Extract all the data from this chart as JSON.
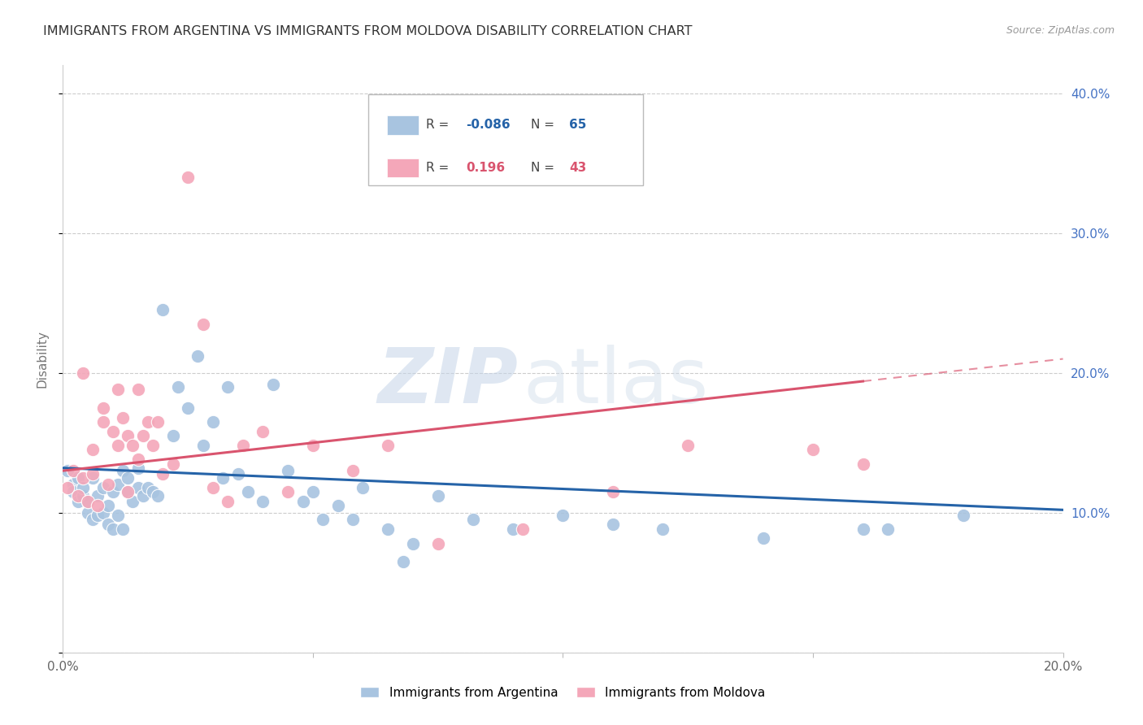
{
  "title": "IMMIGRANTS FROM ARGENTINA VS IMMIGRANTS FROM MOLDOVA DISABILITY CORRELATION CHART",
  "source": "Source: ZipAtlas.com",
  "ylabel": "Disability",
  "xlim": [
    0.0,
    0.2
  ],
  "ylim": [
    0.0,
    0.42
  ],
  "ytick_positions": [
    0.0,
    0.1,
    0.2,
    0.3,
    0.4
  ],
  "xtick_positions": [
    0.0,
    0.05,
    0.1,
    0.15,
    0.2
  ],
  "xtick_labels": [
    "0.0%",
    "",
    "",
    "",
    "20.0%"
  ],
  "ytick_labels": [
    "",
    "10.0%",
    "20.0%",
    "30.0%",
    "40.0%"
  ],
  "argentina_color": "#a8c4e0",
  "moldova_color": "#f4a7b9",
  "argentina_line_color": "#2563a8",
  "moldova_line_color": "#d9546e",
  "R_argentina": "-0.086",
  "N_argentina": "65",
  "R_moldova": "0.196",
  "N_moldova": "43",
  "arg_line_x0": 0.0,
  "arg_line_y0": 0.132,
  "arg_line_x1": 0.2,
  "arg_line_y1": 0.102,
  "mol_line_solid_x0": 0.0,
  "mol_line_solid_y0": 0.13,
  "mol_line_solid_x1": 0.16,
  "mol_line_solid_y1": 0.194,
  "mol_line_dash_x0": 0.16,
  "mol_line_dash_y0": 0.194,
  "mol_line_dash_x1": 0.2,
  "mol_line_dash_y1": 0.21,
  "argentina_x": [
    0.001,
    0.002,
    0.002,
    0.003,
    0.003,
    0.004,
    0.004,
    0.005,
    0.005,
    0.006,
    0.006,
    0.007,
    0.007,
    0.008,
    0.008,
    0.009,
    0.009,
    0.01,
    0.01,
    0.011,
    0.011,
    0.012,
    0.012,
    0.013,
    0.013,
    0.014,
    0.015,
    0.015,
    0.016,
    0.017,
    0.018,
    0.019,
    0.02,
    0.022,
    0.023,
    0.025,
    0.027,
    0.028,
    0.03,
    0.032,
    0.033,
    0.035,
    0.037,
    0.04,
    0.042,
    0.045,
    0.048,
    0.05,
    0.052,
    0.055,
    0.058,
    0.06,
    0.065,
    0.068,
    0.07,
    0.075,
    0.082,
    0.09,
    0.1,
    0.11,
    0.12,
    0.14,
    0.16,
    0.165,
    0.18
  ],
  "argentina_y": [
    0.13,
    0.12,
    0.115,
    0.125,
    0.108,
    0.112,
    0.118,
    0.1,
    0.108,
    0.095,
    0.125,
    0.098,
    0.112,
    0.1,
    0.118,
    0.092,
    0.105,
    0.088,
    0.115,
    0.098,
    0.12,
    0.088,
    0.13,
    0.115,
    0.125,
    0.108,
    0.132,
    0.118,
    0.112,
    0.118,
    0.115,
    0.112,
    0.245,
    0.155,
    0.19,
    0.175,
    0.212,
    0.148,
    0.165,
    0.125,
    0.19,
    0.128,
    0.115,
    0.108,
    0.192,
    0.13,
    0.108,
    0.115,
    0.095,
    0.105,
    0.095,
    0.118,
    0.088,
    0.065,
    0.078,
    0.112,
    0.095,
    0.088,
    0.098,
    0.092,
    0.088,
    0.082,
    0.088,
    0.088,
    0.098
  ],
  "moldova_x": [
    0.001,
    0.002,
    0.003,
    0.004,
    0.004,
    0.005,
    0.006,
    0.006,
    0.007,
    0.008,
    0.008,
    0.009,
    0.01,
    0.011,
    0.011,
    0.012,
    0.013,
    0.013,
    0.014,
    0.015,
    0.015,
    0.016,
    0.017,
    0.018,
    0.019,
    0.02,
    0.022,
    0.025,
    0.028,
    0.03,
    0.033,
    0.036,
    0.04,
    0.045,
    0.05,
    0.058,
    0.065,
    0.075,
    0.092,
    0.11,
    0.125,
    0.15,
    0.16
  ],
  "moldova_y": [
    0.118,
    0.13,
    0.112,
    0.125,
    0.2,
    0.108,
    0.145,
    0.128,
    0.105,
    0.165,
    0.175,
    0.12,
    0.158,
    0.148,
    0.188,
    0.168,
    0.115,
    0.155,
    0.148,
    0.138,
    0.188,
    0.155,
    0.165,
    0.148,
    0.165,
    0.128,
    0.135,
    0.34,
    0.235,
    0.118,
    0.108,
    0.148,
    0.158,
    0.115,
    0.148,
    0.13,
    0.148,
    0.078,
    0.088,
    0.115,
    0.148,
    0.145,
    0.135
  ],
  "watermark_zip": "ZIP",
  "watermark_atlas": "atlas",
  "background_color": "#ffffff",
  "grid_color": "#cccccc",
  "title_fontsize": 11.5,
  "source_fontsize": 9,
  "legend_label_argentina": "Immigrants from Argentina",
  "legend_label_moldova": "Immigrants from Moldova"
}
